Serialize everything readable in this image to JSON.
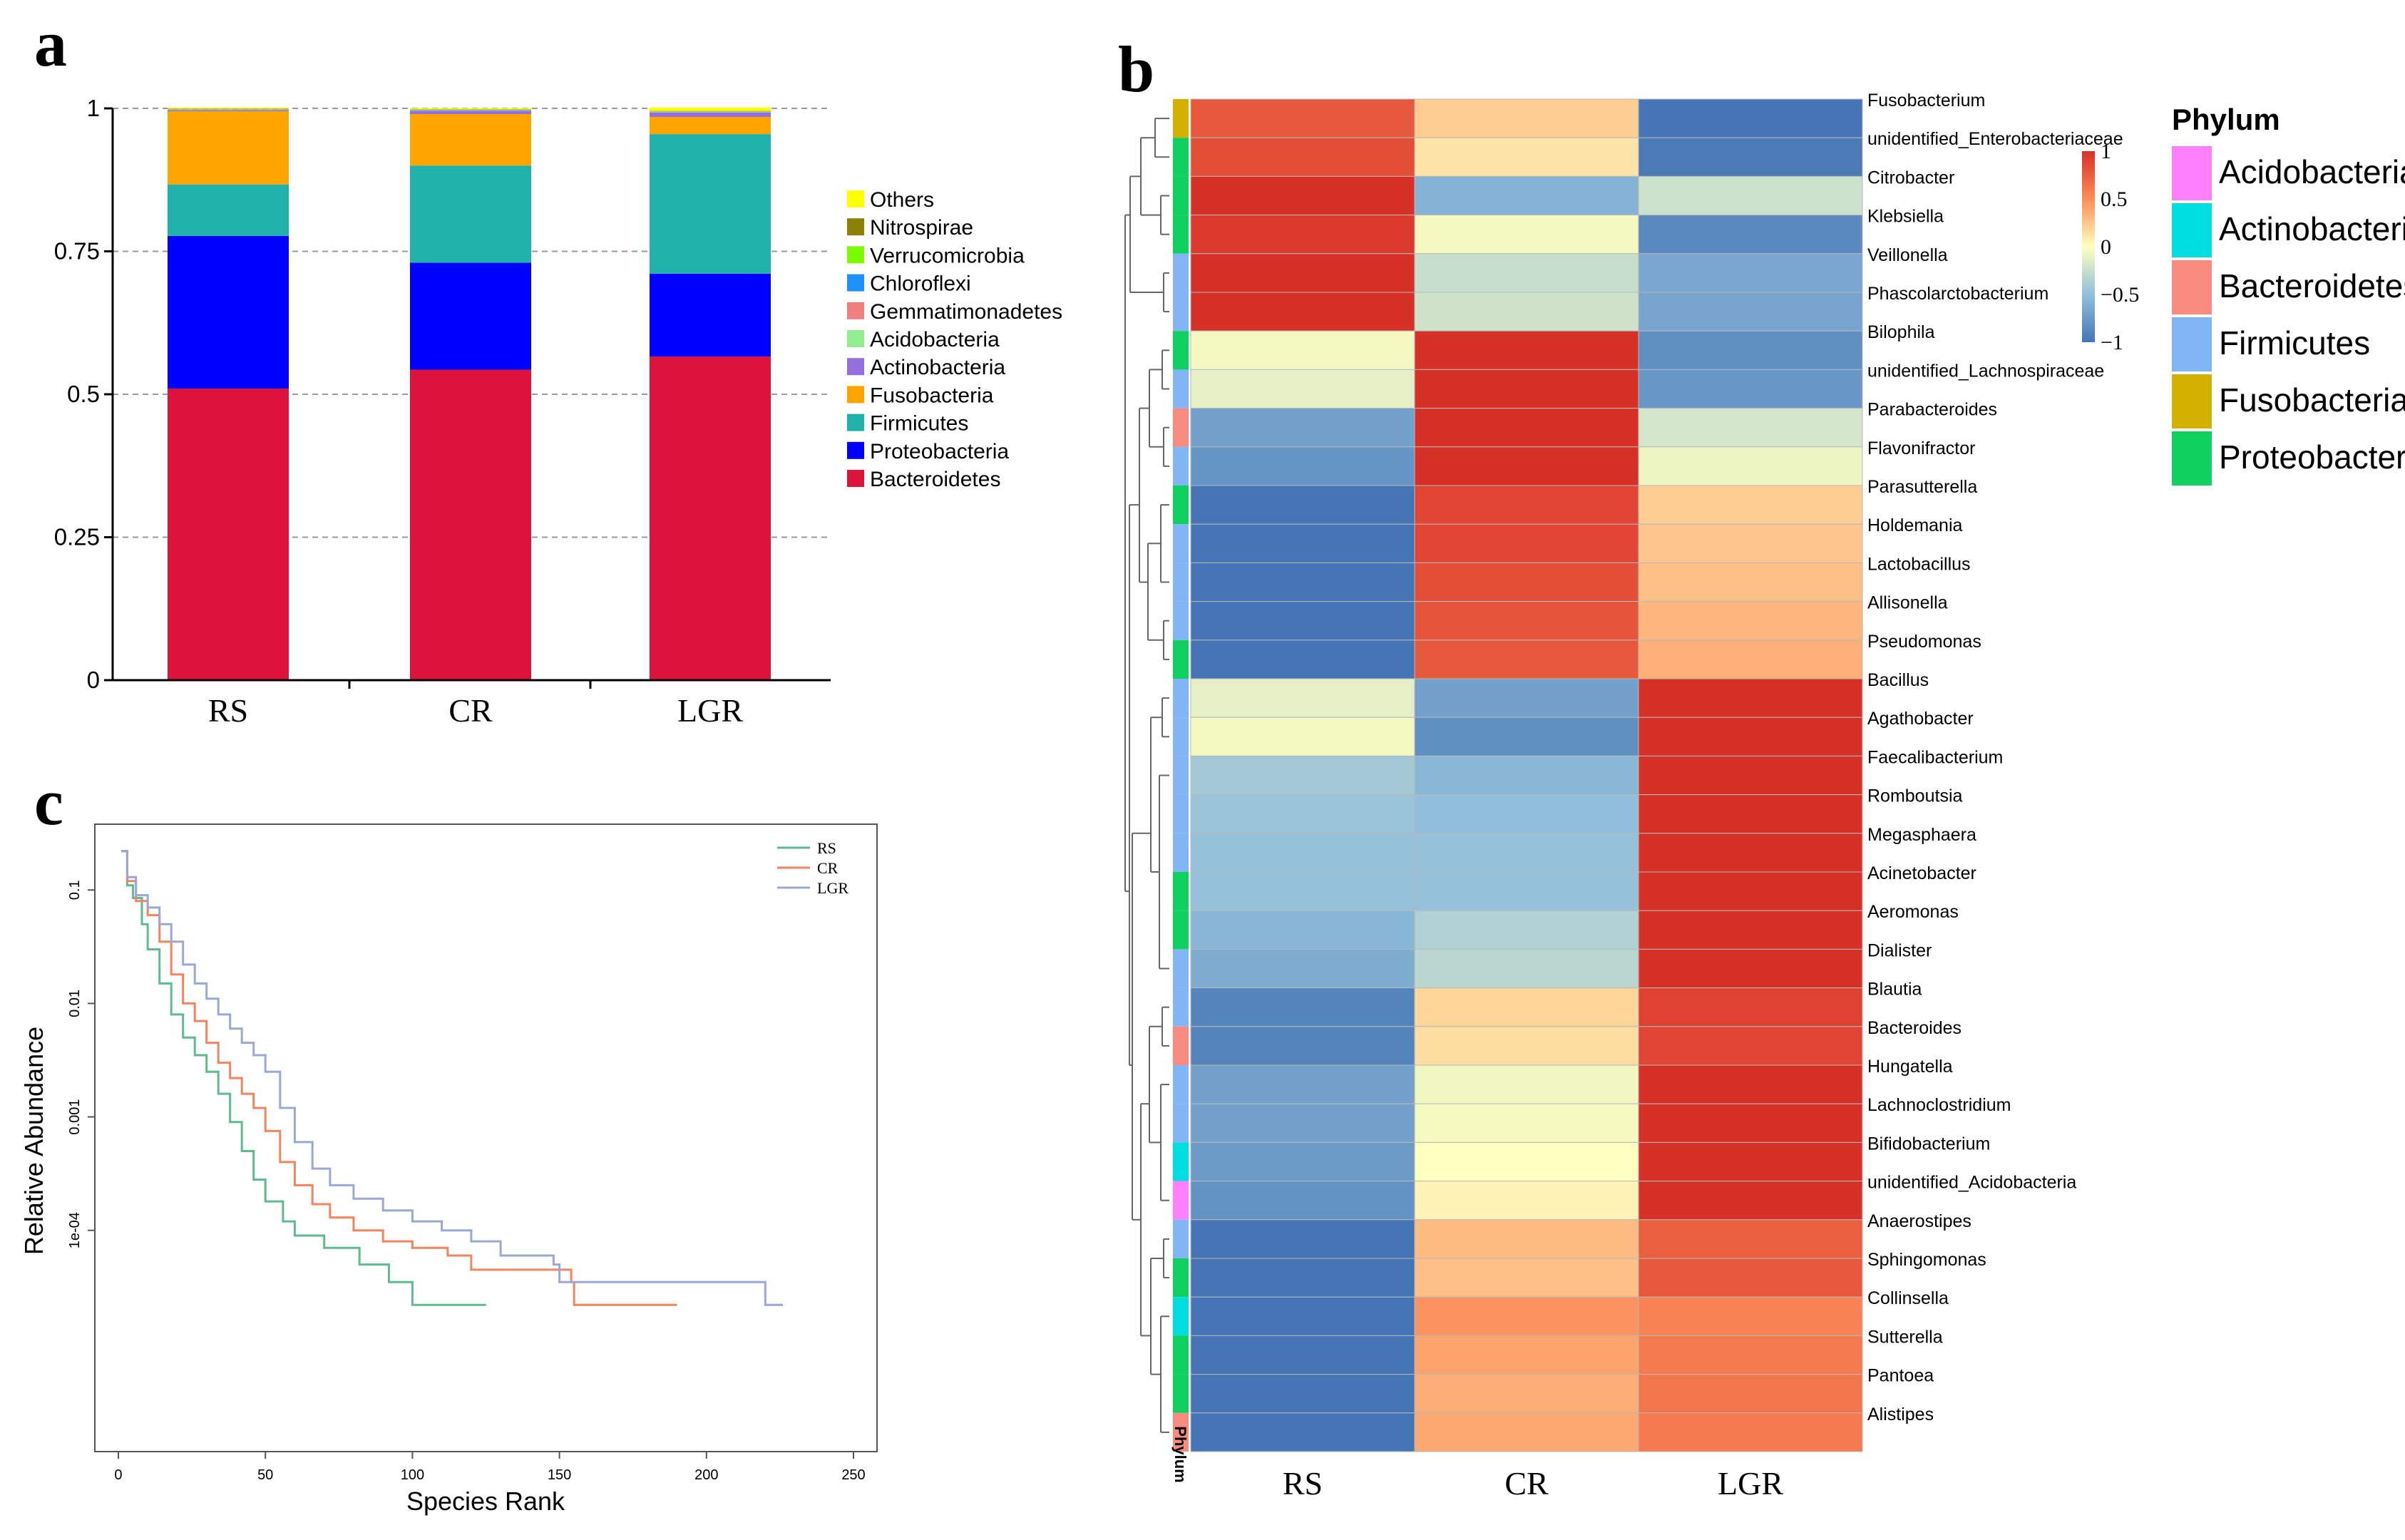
{
  "panels": {
    "a": "a",
    "b": "b",
    "c": "c"
  },
  "chart_data": [
    {
      "id": "a",
      "type": "bar",
      "stacked": true,
      "categories": [
        "RS",
        "CR",
        "LGR"
      ],
      "yticks": [
        "0",
        "0.25",
        "0.5",
        "0.75",
        "1"
      ],
      "ylim": [
        0,
        1
      ],
      "series": [
        {
          "name": "Bacteroidetes",
          "color": "#dc143c",
          "values": [
            0.51,
            0.543,
            0.566
          ]
        },
        {
          "name": "Proteobacteria",
          "color": "#0000ff",
          "values": [
            0.267,
            0.187,
            0.145
          ]
        },
        {
          "name": "Firmicutes",
          "color": "#20b2aa",
          "values": [
            0.09,
            0.17,
            0.244
          ]
        },
        {
          "name": "Fusobacteria",
          "color": "#ffa500",
          "values": [
            0.128,
            0.09,
            0.03
          ]
        },
        {
          "name": "Actinobacteria",
          "color": "#9370db",
          "values": [
            0.002,
            0.006,
            0.008
          ]
        },
        {
          "name": "Acidobacteria",
          "color": "#90ee90",
          "values": [
            0.0005,
            0.0005,
            0.0005
          ]
        },
        {
          "name": "Gemmatimonadetes",
          "color": "#f08080",
          "values": [
            0.0005,
            0.0005,
            0.0005
          ]
        },
        {
          "name": "Chloroflexi",
          "color": "#1e90ff",
          "values": [
            0.0005,
            0.0005,
            0.0005
          ]
        },
        {
          "name": "Verrucomicrobia",
          "color": "#7cfc00",
          "values": [
            0.0005,
            0.0005,
            0.0005
          ]
        },
        {
          "name": "Nitrospirae",
          "color": "#8b8000",
          "values": [
            0.0005,
            0.0005,
            0.0005
          ]
        },
        {
          "name": "Others",
          "color": "#ffff00",
          "values": [
            0.002,
            0.002,
            0.006
          ]
        }
      ],
      "legend_order": [
        "Others",
        "Nitrospirae",
        "Verrucomicrobia",
        "Chloroflexi",
        "Gemmatimonadetes",
        "Acidobacteria",
        "Actinobacteria",
        "Fusobacteria",
        "Firmicutes",
        "Proteobacteria",
        "Bacteroidetes"
      ]
    },
    {
      "id": "b",
      "type": "heatmap",
      "columns": [
        "RS",
        "CR",
        "LGR"
      ],
      "phylum_axis_label": "Phylum",
      "colorbar_ticks": [
        {
          "v": 1,
          "label": "1"
        },
        {
          "v": 0.5,
          "label": "0.5"
        },
        {
          "v": 0,
          "label": "0"
        },
        {
          "v": -0.5,
          "label": "−0.5"
        },
        {
          "v": -1,
          "label": "−1"
        }
      ],
      "phylum_legend_title": "Phylum",
      "phylum_legend": [
        {
          "name": "Acidobacteria",
          "color": "#ff80ff"
        },
        {
          "name": "Actinobacteria",
          "color": "#00dde0"
        },
        {
          "name": "Bacteroidetes",
          "color": "#f88a80"
        },
        {
          "name": "Firmicutes",
          "color": "#80b6f5"
        },
        {
          "name": "Fusobacteria",
          "color": "#d4b000"
        },
        {
          "name": "Proteobacteria",
          "color": "#10d060"
        }
      ],
      "rows": [
        {
          "genus": "Fusobacterium",
          "phylum": "Fusobacteria",
          "values": [
            0.78,
            0.22,
            -1.0
          ]
        },
        {
          "genus": "unidentified_Enterobacteriaceae",
          "phylum": "Proteobacteria",
          "values": [
            0.84,
            0.12,
            -0.96
          ]
        },
        {
          "genus": "Citrobacter",
          "phylum": "Proteobacteria",
          "values": [
            1.0,
            -0.58,
            -0.23
          ]
        },
        {
          "genus": "Klebsiella",
          "phylum": "Proteobacteria",
          "values": [
            0.95,
            -0.05,
            -0.86
          ]
        },
        {
          "genus": "Veillonella",
          "phylum": "Firmicutes",
          "values": [
            1.0,
            -0.25,
            -0.66
          ]
        },
        {
          "genus": "Phascolarctobacterium",
          "phylum": "Firmicutes",
          "values": [
            1.0,
            -0.22,
            -0.68
          ]
        },
        {
          "genus": "Bilophila",
          "phylum": "Proteobacteria",
          "values": [
            -0.05,
            1.0,
            -0.82
          ]
        },
        {
          "genus": "unidentified_Lachnospiraceae",
          "phylum": "Firmicutes",
          "values": [
            -0.12,
            1.0,
            -0.77
          ]
        },
        {
          "genus": "Parabacteroides",
          "phylum": "Bacteroidetes",
          "values": [
            -0.7,
            1.0,
            -0.2
          ]
        },
        {
          "genus": "Flavonifractor",
          "phylum": "Firmicutes",
          "values": [
            -0.78,
            1.0,
            -0.08
          ]
        },
        {
          "genus": "Parasutterella",
          "phylum": "Proteobacteria",
          "values": [
            -1.0,
            0.88,
            0.22
          ]
        },
        {
          "genus": "Holdemania",
          "phylum": "Firmicutes",
          "values": [
            -1.0,
            0.88,
            0.25
          ]
        },
        {
          "genus": "Lactobacillus",
          "phylum": "Firmicutes",
          "values": [
            -1.0,
            0.84,
            0.28
          ]
        },
        {
          "genus": "Allisonella",
          "phylum": "Firmicutes",
          "values": [
            -1.0,
            0.8,
            0.32
          ]
        },
        {
          "genus": "Pseudomonas",
          "phylum": "Proteobacteria",
          "values": [
            -1.0,
            0.78,
            0.35
          ]
        },
        {
          "genus": "Bacillus",
          "phylum": "Firmicutes",
          "values": [
            -0.12,
            -0.7,
            1.0
          ]
        },
        {
          "genus": "Agathobacter",
          "phylum": "Firmicutes",
          "values": [
            -0.05,
            -0.82,
            1.0
          ]
        },
        {
          "genus": "Faecalibacterium",
          "phylum": "Firmicutes",
          "values": [
            -0.42,
            -0.55,
            1.0
          ]
        },
        {
          "genus": "Romboutsia",
          "phylum": "Firmicutes",
          "values": [
            -0.46,
            -0.5,
            1.0
          ]
        },
        {
          "genus": "Megasphaera",
          "phylum": "Firmicutes",
          "values": [
            -0.48,
            -0.48,
            1.0
          ]
        },
        {
          "genus": "Acinetobacter",
          "phylum": "Proteobacteria",
          "values": [
            -0.48,
            -0.48,
            1.0
          ]
        },
        {
          "genus": "Aeromonas",
          "phylum": "Proteobacteria",
          "values": [
            -0.56,
            -0.36,
            1.0
          ]
        },
        {
          "genus": "Dialister",
          "phylum": "Firmicutes",
          "values": [
            -0.62,
            -0.32,
            1.0
          ]
        },
        {
          "genus": "Blautia",
          "phylum": "Firmicutes",
          "values": [
            -0.9,
            0.18,
            0.9
          ]
        },
        {
          "genus": "Bacteroides",
          "phylum": "Bacteroidetes",
          "values": [
            -0.9,
            0.15,
            0.88
          ]
        },
        {
          "genus": "Hungatella",
          "phylum": "Firmicutes",
          "values": [
            -0.7,
            -0.06,
            1.0
          ]
        },
        {
          "genus": "Lachnoclostridium",
          "phylum": "Firmicutes",
          "values": [
            -0.7,
            -0.04,
            1.0
          ]
        },
        {
          "genus": "Bifidobacterium",
          "phylum": "Actinobacteria",
          "values": [
            -0.74,
            0.0,
            1.0
          ]
        },
        {
          "genus": "unidentified_Acidobacteria",
          "phylum": "Acidobacteria",
          "values": [
            -0.8,
            0.05,
            1.0
          ]
        },
        {
          "genus": "Anaerostipes",
          "phylum": "Firmicutes",
          "values": [
            -1.0,
            0.3,
            0.75
          ]
        },
        {
          "genus": "Sphingomonas",
          "phylum": "Proteobacteria",
          "values": [
            -1.0,
            0.28,
            0.78
          ]
        },
        {
          "genus": "Collinsella",
          "phylum": "Actinobacteria",
          "values": [
            -1.0,
            0.48,
            0.56
          ]
        },
        {
          "genus": "Sutterella",
          "phylum": "Proteobacteria",
          "values": [
            -1.0,
            0.4,
            0.6
          ]
        },
        {
          "genus": "Pantoea",
          "phylum": "Proteobacteria",
          "values": [
            -1.0,
            0.36,
            0.62
          ]
        },
        {
          "genus": "Alistipes",
          "phylum": "Bacteroidetes",
          "values": [
            -1.0,
            0.38,
            0.6
          ]
        }
      ]
    },
    {
      "id": "c",
      "type": "line",
      "log_y": true,
      "xlabel": "Species Rank",
      "ylabel": "Relative Abundance",
      "xlim": [
        -8,
        258
      ],
      "ylim_log10": [
        -5.95,
        -0.42
      ],
      "xticks": [
        {
          "v": 0,
          "label": "0"
        },
        {
          "v": 50,
          "label": "50"
        },
        {
          "v": 100,
          "label": "100"
        },
        {
          "v": 150,
          "label": "150"
        },
        {
          "v": 200,
          "label": "200"
        },
        {
          "v": 250,
          "label": "250"
        }
      ],
      "yticks": [
        {
          "v": 0.1,
          "label": "0.1"
        },
        {
          "v": 0.01,
          "label": "0.01"
        },
        {
          "v": 0.001,
          "label": "0.001"
        },
        {
          "v": 0.0001,
          "label": "1e-04"
        }
      ],
      "series": [
        {
          "name": "RS",
          "color": "#5dbb8f",
          "points": [
            [
              1,
              0.22
            ],
            [
              3,
              0.11
            ],
            [
              5,
              0.085
            ],
            [
              8,
              0.05
            ],
            [
              10,
              0.03
            ],
            [
              14,
              0.015
            ],
            [
              18,
              0.008
            ],
            [
              22,
              0.005
            ],
            [
              26,
              0.0035
            ],
            [
              30,
              0.0025
            ],
            [
              34,
              0.0016
            ],
            [
              38,
              0.0009
            ],
            [
              42,
              0.0005
            ],
            [
              46,
              0.00028
            ],
            [
              50,
              0.00018
            ],
            [
              56,
              0.00012
            ],
            [
              60,
              9e-05
            ],
            [
              70,
              7e-05
            ],
            [
              82,
              5e-05
            ],
            [
              92,
              3.5e-05
            ],
            [
              100,
              3.5e-05
            ],
            [
              100,
              2.2e-05
            ],
            [
              125,
              2.2e-05
            ]
          ]
        },
        {
          "name": "CR",
          "color": "#f4845f",
          "points": [
            [
              1,
              0.22
            ],
            [
              3,
              0.12
            ],
            [
              6,
              0.08
            ],
            [
              10,
              0.06
            ],
            [
              14,
              0.035
            ],
            [
              18,
              0.018
            ],
            [
              22,
              0.01
            ],
            [
              26,
              0.007
            ],
            [
              30,
              0.0045
            ],
            [
              34,
              0.003
            ],
            [
              38,
              0.0022
            ],
            [
              42,
              0.0016
            ],
            [
              46,
              0.0012
            ],
            [
              50,
              0.00075
            ],
            [
              55,
              0.0004
            ],
            [
              60,
              0.00025
            ],
            [
              66,
              0.00017
            ],
            [
              72,
              0.00013
            ],
            [
              80,
              0.0001
            ],
            [
              90,
              8e-05
            ],
            [
              100,
              7e-05
            ],
            [
              112,
              6e-05
            ],
            [
              120,
              4.5e-05
            ],
            [
              154,
              3.5e-05
            ],
            [
              155,
              2.2e-05
            ],
            [
              190,
              2.2e-05
            ]
          ]
        },
        {
          "name": "LGR",
          "color": "#9aa8d6",
          "points": [
            [
              1,
              0.22
            ],
            [
              3,
              0.13
            ],
            [
              6,
              0.09
            ],
            [
              10,
              0.07
            ],
            [
              14,
              0.05
            ],
            [
              18,
              0.035
            ],
            [
              22,
              0.022
            ],
            [
              26,
              0.015
            ],
            [
              30,
              0.011
            ],
            [
              34,
              0.008
            ],
            [
              38,
              0.006
            ],
            [
              42,
              0.0045
            ],
            [
              46,
              0.0035
            ],
            [
              50,
              0.0025
            ],
            [
              55,
              0.0012
            ],
            [
              60,
              0.0006
            ],
            [
              66,
              0.00035
            ],
            [
              72,
              0.00025
            ],
            [
              80,
              0.00019
            ],
            [
              90,
              0.00015
            ],
            [
              100,
              0.00012
            ],
            [
              110,
              0.0001
            ],
            [
              120,
              8e-05
            ],
            [
              130,
              6e-05
            ],
            [
              148,
              5e-05
            ],
            [
              150,
              3.5e-05
            ],
            [
              200,
              3.5e-05
            ],
            [
              219,
              3.5e-05
            ],
            [
              220,
              2.2e-05
            ],
            [
              226,
              2.2e-05
            ]
          ]
        }
      ]
    }
  ]
}
